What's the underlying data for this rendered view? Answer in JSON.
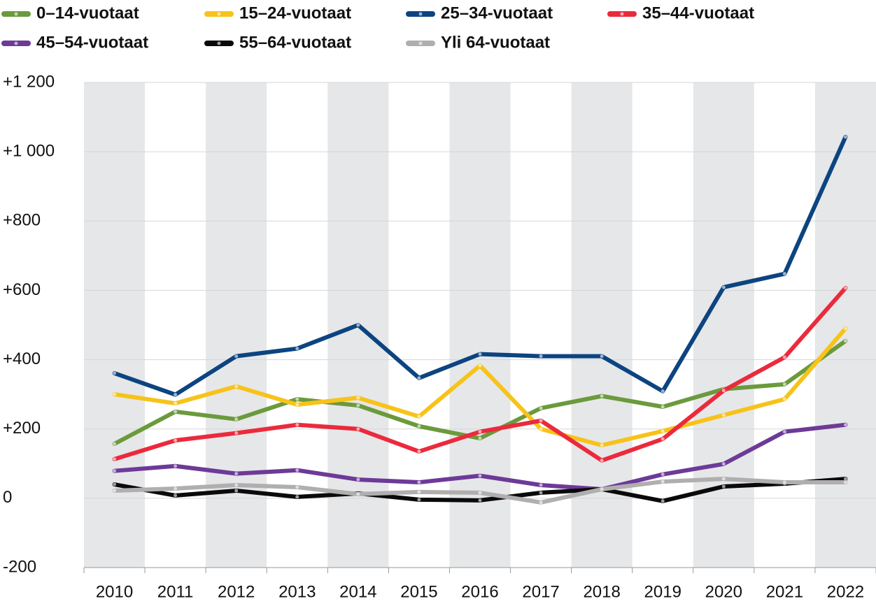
{
  "chart_data": {
    "type": "line",
    "categories": [
      "2010",
      "2011",
      "2012",
      "2013",
      "2014",
      "2015",
      "2016",
      "2017",
      "2018",
      "2019",
      "2020",
      "2021",
      "2022"
    ],
    "series": [
      {
        "name": "0–14-vuotaat",
        "color": "#6b9a3c",
        "values": [
          157,
          250,
          228,
          286,
          268,
          208,
          173,
          260,
          295,
          264,
          315,
          329,
          454
        ]
      },
      {
        "name": "15–24-vuotaat",
        "color": "#f7c31a",
        "values": [
          300,
          274,
          323,
          270,
          290,
          236,
          383,
          200,
          153,
          194,
          240,
          286,
          490
        ]
      },
      {
        "name": "25–34-vuotaat",
        "color": "#0c4480",
        "values": [
          361,
          299,
          410,
          432,
          500,
          347,
          416,
          410,
          410,
          309,
          609,
          648,
          1043
        ]
      },
      {
        "name": "35–44-vuotaat",
        "color": "#eb2a3c",
        "values": [
          113,
          167,
          188,
          212,
          200,
          135,
          192,
          224,
          109,
          171,
          311,
          407,
          607
        ]
      },
      {
        "name": "45–54-vuotaat",
        "color": "#6d3a98",
        "values": [
          79,
          93,
          71,
          81,
          54,
          46,
          65,
          38,
          26,
          69,
          99,
          192,
          212
        ]
      },
      {
        "name": "55–64-vuotaat",
        "color": "#0a0a0a",
        "values": [
          40,
          8,
          22,
          4,
          14,
          -4,
          -6,
          16,
          26,
          -8,
          34,
          42,
          56
        ]
      },
      {
        "name": "Yli 64-vuotaat",
        "color": "#b0aeae",
        "values": [
          22,
          28,
          38,
          32,
          12,
          18,
          16,
          -12,
          26,
          48,
          56,
          46,
          46
        ]
      }
    ],
    "ylim": [
      -200,
      1200
    ],
    "yticks": [
      -200,
      0,
      {
        "value": 200,
        "label": "+200"
      },
      {
        "value": 400,
        "label": "+400"
      },
      {
        "value": 600,
        "label": "+600"
      },
      {
        "value": 800,
        "label": "+800"
      },
      {
        "value": 1000,
        "label": "+1 000"
      },
      {
        "value": 1200,
        "label": "+1 200"
      }
    ],
    "grid": true,
    "band_shading": true,
    "legend": "top"
  }
}
